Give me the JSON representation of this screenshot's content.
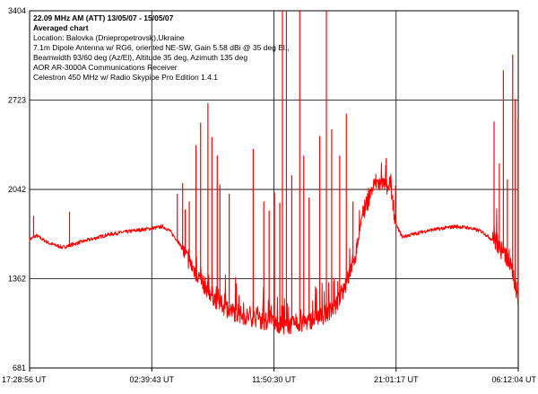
{
  "chart_data": {
    "type": "line",
    "title": "22.09 MHz AM (ATT) 13/05/07 - 15/05/07",
    "subtitle": "Averaged chart",
    "info_lines": [
      "Location: Balovka (Dniepropetrovsk),Ukraine",
      "7.1m Dipole Antenna w/ RG6, oriented NE-SW, Gain 5.58 dBi @ 35 deg El.,",
      "Beamwidth 93/60 deg (Az/El), Altitude 35 deg, Azimuth 135 deg",
      "AOR AR-3000A Communications Receiver",
      "Celestron 450 MHz w/ Radio Skypipe Pro Edition 1.4.1"
    ],
    "xlabel": "",
    "ylabel": "",
    "ylim": [
      681,
      3404
    ],
    "y_ticks": [
      "3404",
      "2723",
      "2042",
      "1362",
      "681"
    ],
    "y_tick_values": [
      3404,
      2723,
      2042,
      1362,
      681
    ],
    "x_ticks": [
      "17:28:56 UT",
      "02:39:43 UT",
      "11:50:30 UT",
      "21:01:17 UT",
      "06:12:04 UT"
    ],
    "x_range_hours": [
      0,
      36.72
    ],
    "grid": true,
    "series_color": "#ff0000",
    "baseline": [
      [
        0,
        1660
      ],
      [
        0.5,
        1690
      ],
      [
        1.5,
        1630
      ],
      [
        2.5,
        1600
      ],
      [
        3.8,
        1640
      ],
      [
        6,
        1700
      ],
      [
        8,
        1730
      ],
      [
        9.5,
        1750
      ],
      [
        10.0,
        1760
      ],
      [
        10.5,
        1730
      ],
      [
        11.2,
        1640
      ],
      [
        12,
        1490
      ],
      [
        13,
        1330
      ],
      [
        14,
        1200
      ],
      [
        15,
        1120
      ],
      [
        16,
        1080
      ],
      [
        17,
        1060
      ],
      [
        17.5,
        1040
      ],
      [
        18.5,
        1020
      ],
      [
        19.2,
        1000
      ],
      [
        20,
        1010
      ],
      [
        21,
        1040
      ],
      [
        22,
        1080
      ],
      [
        23,
        1150
      ],
      [
        23.5,
        1260
      ],
      [
        24,
        1380
      ],
      [
        24.5,
        1550
      ],
      [
        25,
        1850
      ],
      [
        26,
        2100
      ],
      [
        27,
        2050
      ],
      [
        27.3,
        1920
      ],
      [
        27.6,
        1760
      ],
      [
        28,
        1680
      ],
      [
        30,
        1730
      ],
      [
        32,
        1760
      ],
      [
        33,
        1750
      ],
      [
        34,
        1720
      ],
      [
        35,
        1640
      ],
      [
        35.8,
        1530
      ],
      [
        36.3,
        1420
      ],
      [
        36.72,
        1200
      ]
    ],
    "spikes": [
      [
        0.3,
        1840
      ],
      [
        3.0,
        1870
      ],
      [
        11.1,
        2010
      ],
      [
        11.5,
        2090
      ],
      [
        11.7,
        1890
      ],
      [
        12.0,
        1950
      ],
      [
        12.5,
        2380
      ],
      [
        12.85,
        2550
      ],
      [
        13.4,
        2700
      ],
      [
        13.7,
        2440
      ],
      [
        14.1,
        2300
      ],
      [
        14.3,
        2080
      ],
      [
        15.0,
        2010
      ],
      [
        16.8,
        2350
      ],
      [
        17.6,
        1950
      ],
      [
        18.0,
        1880
      ],
      [
        18.4,
        2020
      ],
      [
        18.8,
        1940
      ],
      [
        19.0,
        3404
      ],
      [
        19.3,
        3404
      ],
      [
        19.7,
        2150
      ],
      [
        20.3,
        3404
      ],
      [
        20.6,
        2300
      ],
      [
        21.0,
        1980
      ],
      [
        21.8,
        2450
      ],
      [
        22.3,
        3404
      ],
      [
        22.7,
        2500
      ],
      [
        23.3,
        2300
      ],
      [
        23.8,
        2620
      ],
      [
        24.3,
        1950
      ],
      [
        26.8,
        2280
      ],
      [
        27.5,
        2070
      ],
      [
        34.9,
        2560
      ],
      [
        35.3,
        2240
      ],
      [
        35.6,
        2950
      ],
      [
        35.9,
        2120
      ],
      [
        36.3,
        3070
      ],
      [
        36.5,
        2730
      ],
      [
        36.7,
        2580
      ]
    ]
  }
}
